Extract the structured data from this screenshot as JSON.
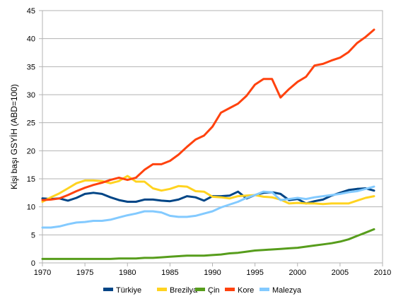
{
  "chart_data": {
    "type": "line",
    "title": "",
    "xlabel": "",
    "ylabel": "Kişi başı GSYİH (ABD=100)",
    "xlim": [
      1970,
      2010
    ],
    "ylim": [
      0,
      45
    ],
    "x_ticks": [
      "1970",
      "1975",
      "1980",
      "1985",
      "1990",
      "1995",
      "2000",
      "2005",
      "2010"
    ],
    "y_ticks": [
      "0",
      "5",
      "10",
      "15",
      "20",
      "25",
      "30",
      "35",
      "40",
      "45"
    ],
    "grid": true,
    "legend_position": "bottom",
    "series": [
      {
        "name": "Türkiye",
        "color": "#004586",
        "x": [
          1970,
          1971,
          1972,
          1973,
          1974,
          1975,
          1976,
          1977,
          1978,
          1979,
          1980,
          1981,
          1982,
          1983,
          1984,
          1985,
          1986,
          1987,
          1988,
          1989,
          1990,
          1991,
          1992,
          1993,
          1994,
          1995,
          1996,
          1997,
          1998,
          1999,
          2000,
          2001,
          2002,
          2003,
          2004,
          2005,
          2006,
          2007,
          2008,
          2009
        ],
        "values": [
          11.5,
          11.4,
          11.5,
          11.1,
          11.6,
          12.3,
          12.5,
          12.3,
          11.7,
          11.2,
          10.9,
          10.9,
          11.3,
          11.3,
          11.1,
          11.0,
          11.3,
          11.9,
          11.7,
          11.1,
          11.9,
          11.9,
          12.0,
          12.7,
          11.5,
          12.1,
          12.5,
          12.6,
          12.3,
          11.2,
          11.4,
          10.6,
          11.0,
          11.3,
          12.0,
          12.5,
          13.0,
          13.2,
          13.3,
          12.9
        ]
      },
      {
        "name": "Brezilya",
        "color": "#ffd320",
        "x": [
          1970,
          1971,
          1972,
          1973,
          1974,
          1975,
          1976,
          1977,
          1978,
          1979,
          1980,
          1981,
          1982,
          1983,
          1984,
          1985,
          1986,
          1987,
          1988,
          1989,
          1990,
          1991,
          1992,
          1993,
          1994,
          1995,
          1996,
          1997,
          1998,
          1999,
          2000,
          2001,
          2002,
          2003,
          2004,
          2005,
          2006,
          2007,
          2008,
          2009
        ],
        "values": [
          10.9,
          11.7,
          12.4,
          13.3,
          14.2,
          14.7,
          14.7,
          14.6,
          14.2,
          14.6,
          15.5,
          14.5,
          14.5,
          13.3,
          12.9,
          13.2,
          13.7,
          13.6,
          12.8,
          12.7,
          11.8,
          11.7,
          11.5,
          11.9,
          12.0,
          12.1,
          11.8,
          11.7,
          11.3,
          10.6,
          10.7,
          10.6,
          10.6,
          10.5,
          10.6,
          10.6,
          10.6,
          11.1,
          11.6,
          11.9
        ]
      },
      {
        "name": "Çin",
        "color": "#579d1c",
        "x": [
          1970,
          1971,
          1972,
          1973,
          1974,
          1975,
          1976,
          1977,
          1978,
          1979,
          1980,
          1981,
          1982,
          1983,
          1984,
          1985,
          1986,
          1987,
          1988,
          1989,
          1990,
          1991,
          1992,
          1993,
          1994,
          1995,
          1996,
          1997,
          1998,
          1999,
          2000,
          2001,
          2002,
          2003,
          2004,
          2005,
          2006,
          2007,
          2008,
          2009
        ],
        "values": [
          0.7,
          0.7,
          0.7,
          0.7,
          0.7,
          0.7,
          0.7,
          0.7,
          0.7,
          0.8,
          0.8,
          0.8,
          0.9,
          0.9,
          1.0,
          1.1,
          1.2,
          1.3,
          1.3,
          1.3,
          1.4,
          1.5,
          1.7,
          1.8,
          2.0,
          2.2,
          2.3,
          2.4,
          2.5,
          2.6,
          2.7,
          2.9,
          3.1,
          3.3,
          3.5,
          3.8,
          4.2,
          4.8,
          5.4,
          6.0
        ]
      },
      {
        "name": "Kore",
        "color": "#ff420e",
        "x": [
          1970,
          1971,
          1972,
          1973,
          1974,
          1975,
          1976,
          1977,
          1978,
          1979,
          1980,
          1981,
          1982,
          1983,
          1984,
          1985,
          1986,
          1987,
          1988,
          1989,
          1990,
          1991,
          1992,
          1993,
          1994,
          1995,
          1996,
          1997,
          1998,
          1999,
          2000,
          2001,
          2002,
          2003,
          2004,
          2005,
          2006,
          2007,
          2008,
          2009
        ],
        "values": [
          11.2,
          11.3,
          11.5,
          12.1,
          12.8,
          13.4,
          13.9,
          14.3,
          14.8,
          15.2,
          14.8,
          15.2,
          16.6,
          17.6,
          17.6,
          18.2,
          19.3,
          20.7,
          22.0,
          22.7,
          24.3,
          26.8,
          27.6,
          28.4,
          29.8,
          31.8,
          32.8,
          32.8,
          29.5,
          31.0,
          32.3,
          33.2,
          35.2,
          35.5,
          36.1,
          36.6,
          37.6,
          39.2,
          40.3,
          41.6
        ]
      },
      {
        "name": "Malezya",
        "color": "#83caff",
        "x": [
          1970,
          1971,
          1972,
          1973,
          1974,
          1975,
          1976,
          1977,
          1978,
          1979,
          1980,
          1981,
          1982,
          1983,
          1984,
          1985,
          1986,
          1987,
          1988,
          1989,
          1990,
          1991,
          1992,
          1993,
          1994,
          1995,
          1996,
          1997,
          1998,
          1999,
          2000,
          2001,
          2002,
          2003,
          2004,
          2005,
          2006,
          2007,
          2008,
          2009
        ],
        "values": [
          6.3,
          6.3,
          6.5,
          6.9,
          7.2,
          7.3,
          7.5,
          7.5,
          7.7,
          8.1,
          8.5,
          8.8,
          9.2,
          9.2,
          9.0,
          8.4,
          8.2,
          8.2,
          8.4,
          8.8,
          9.2,
          9.9,
          10.4,
          10.9,
          11.6,
          12.1,
          12.7,
          12.6,
          11.2,
          11.4,
          11.6,
          11.4,
          11.7,
          11.9,
          12.1,
          12.3,
          12.6,
          12.8,
          13.2,
          13.6
        ]
      }
    ]
  }
}
